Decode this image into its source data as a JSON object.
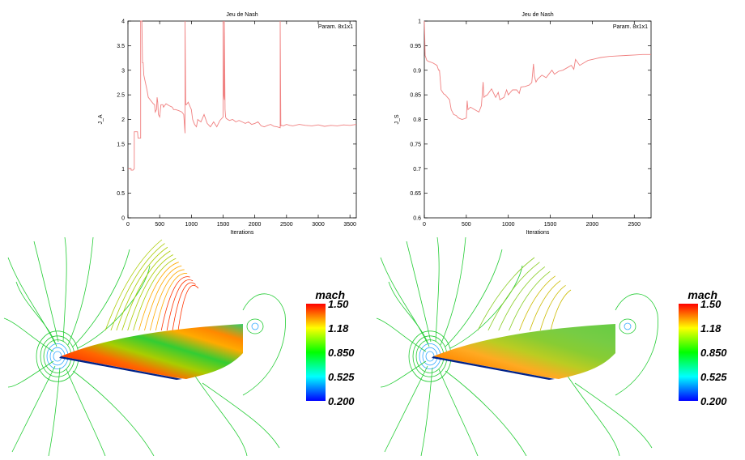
{
  "chart_data": [
    {
      "type": "line",
      "title": "Jeu de Nash",
      "xlabel": "Iterations",
      "ylabel": "J_A",
      "xlim": [
        0,
        3600
      ],
      "ylim": [
        0,
        4
      ],
      "xticks": [
        0,
        500,
        1000,
        1500,
        2000,
        2500,
        3000,
        3500
      ],
      "yticks": [
        0,
        0.5,
        1,
        1.5,
        2,
        2.5,
        3,
        3.5,
        4
      ],
      "grid": false,
      "legend": "top-right",
      "series": [
        {
          "name": "Param. 8x1x1",
          "color": "#f08080",
          "x": [
            0,
            50,
            50,
            80,
            100,
            100,
            150,
            160,
            200,
            200,
            210,
            220,
            230,
            240,
            250,
            300,
            320,
            400,
            420,
            430,
            450,
            460,
            470,
            480,
            500,
            520,
            550,
            560,
            600,
            650,
            700,
            720,
            750,
            800,
            850,
            880,
            900,
            900,
            910,
            920,
            950,
            1000,
            1020,
            1050,
            1080,
            1100,
            1150,
            1200,
            1250,
            1300,
            1350,
            1400,
            1450,
            1500,
            1500,
            1510,
            1520,
            1520,
            1530,
            1540,
            1550,
            1600,
            1650,
            1700,
            1750,
            1800,
            1850,
            1900,
            1950,
            2000,
            2050,
            2100,
            2150,
            2200,
            2250,
            2300,
            2350,
            2400,
            2400,
            2410,
            2420,
            2450,
            2500,
            2550,
            2600,
            2700,
            2800,
            2900,
            3000,
            3100,
            3200,
            3300,
            3400,
            3500,
            3600
          ],
          "y": [
            1.0,
            1.0,
            0.97,
            0.97,
            1.0,
            1.75,
            1.75,
            1.62,
            1.62,
            4.0,
            4.0,
            4.0,
            3.15,
            3.15,
            2.9,
            2.6,
            2.45,
            2.32,
            2.3,
            2.15,
            2.2,
            2.45,
            2.35,
            2.1,
            2.05,
            2.3,
            2.3,
            2.25,
            2.32,
            2.28,
            2.25,
            2.2,
            2.2,
            2.18,
            2.15,
            2.1,
            1.72,
            4.0,
            2.3,
            2.3,
            2.35,
            2.2,
            2.0,
            1.9,
            1.85,
            2.0,
            1.95,
            2.1,
            1.92,
            1.85,
            1.95,
            1.85,
            1.98,
            2.05,
            4.0,
            2.5,
            2.4,
            4.0,
            2.2,
            2.05,
            2.02,
            1.98,
            2.0,
            1.95,
            1.98,
            1.95,
            1.92,
            1.95,
            1.9,
            1.92,
            1.95,
            1.87,
            1.85,
            1.88,
            1.9,
            1.86,
            1.85,
            1.83,
            4.0,
            1.87,
            1.88,
            1.87,
            1.9,
            1.88,
            1.87,
            1.9,
            1.88,
            1.87,
            1.89,
            1.86,
            1.88,
            1.87,
            1.89,
            1.88,
            1.9
          ]
        }
      ]
    },
    {
      "type": "line",
      "title": "Jeu de Nash",
      "xlabel": "Iterations",
      "ylabel": "J_S",
      "xlim": [
        0,
        2700
      ],
      "ylim": [
        0.6,
        1
      ],
      "xticks": [
        0,
        500,
        1000,
        1500,
        2000,
        2500
      ],
      "yticks": [
        0.6,
        0.65,
        0.7,
        0.75,
        0.8,
        0.85,
        0.9,
        0.95,
        1
      ],
      "grid": false,
      "legend": "top-right",
      "series": [
        {
          "name": "Param. 8x1x1",
          "color": "#f08080",
          "x": [
            0,
            5,
            10,
            20,
            30,
            50,
            100,
            150,
            170,
            180,
            190,
            200,
            230,
            250,
            300,
            320,
            350,
            380,
            400,
            420,
            450,
            500,
            510,
            520,
            550,
            600,
            650,
            680,
            700,
            710,
            730,
            750,
            800,
            850,
            880,
            900,
            950,
            980,
            1000,
            1050,
            1100,
            1130,
            1150,
            1200,
            1250,
            1280,
            1300,
            1310,
            1330,
            1350,
            1400,
            1450,
            1500,
            1520,
            1550,
            1600,
            1650,
            1700,
            1750,
            1780,
            1800,
            1850,
            1900,
            1950,
            2000,
            2050,
            2100,
            2200,
            2300,
            2400,
            2500,
            2600,
            2700
          ],
          "y": [
            1.0,
            0.97,
            0.93,
            0.925,
            0.92,
            0.918,
            0.915,
            0.91,
            0.9,
            0.9,
            0.88,
            0.86,
            0.852,
            0.85,
            0.84,
            0.82,
            0.81,
            0.808,
            0.804,
            0.802,
            0.8,
            0.803,
            0.838,
            0.82,
            0.825,
            0.82,
            0.815,
            0.828,
            0.876,
            0.845,
            0.848,
            0.85,
            0.862,
            0.845,
            0.855,
            0.84,
            0.845,
            0.86,
            0.85,
            0.86,
            0.86,
            0.853,
            0.866,
            0.867,
            0.87,
            0.875,
            0.913,
            0.888,
            0.876,
            0.882,
            0.89,
            0.885,
            0.896,
            0.9,
            0.892,
            0.898,
            0.9,
            0.905,
            0.91,
            0.902,
            0.922,
            0.91,
            0.915,
            0.92,
            0.922,
            0.924,
            0.926,
            0.928,
            0.929,
            0.93,
            0.931,
            0.932,
            0.932
          ]
        }
      ]
    }
  ],
  "fields": {
    "colorbar": {
      "title": "mach",
      "ticks": [
        "1.50",
        "1.18",
        "0.850",
        "0.525",
        "0.200"
      ],
      "colors": [
        "#ff0000",
        "#ffff00",
        "#00ff00",
        "#00ffff",
        "#0000ff"
      ]
    }
  }
}
